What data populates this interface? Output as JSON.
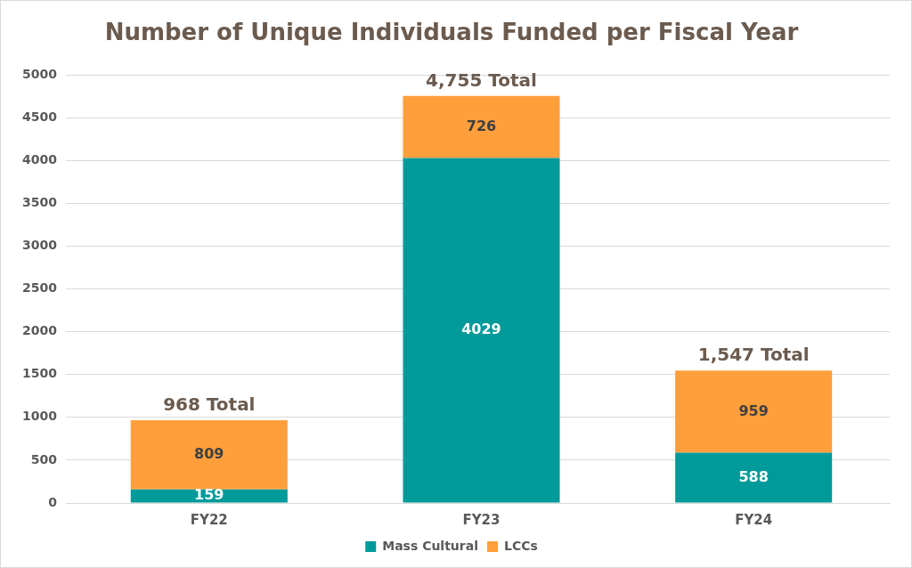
{
  "chart_data": {
    "type": "bar",
    "title": "Number of Unique Individuals Funded per Fiscal Year",
    "categories": [
      "FY22",
      "FY23",
      "FY24"
    ],
    "series": [
      {
        "name": "Mass Cultural",
        "color": "#009a9a",
        "values": [
          159,
          4029,
          588
        ]
      },
      {
        "name": "LCCs",
        "color": "#ff9f3c",
        "values": [
          809,
          726,
          959
        ]
      }
    ],
    "annotations": [
      "968 Total",
      "4,755 Total",
      "1,547 Total"
    ],
    "ylim": [
      0,
      5000
    ],
    "yticks": [
      0,
      500,
      1000,
      1500,
      2000,
      2500,
      3000,
      3500,
      4000,
      4500,
      5000
    ],
    "grid": true,
    "stacked": true,
    "data_labels": true,
    "legend": "bottom"
  }
}
